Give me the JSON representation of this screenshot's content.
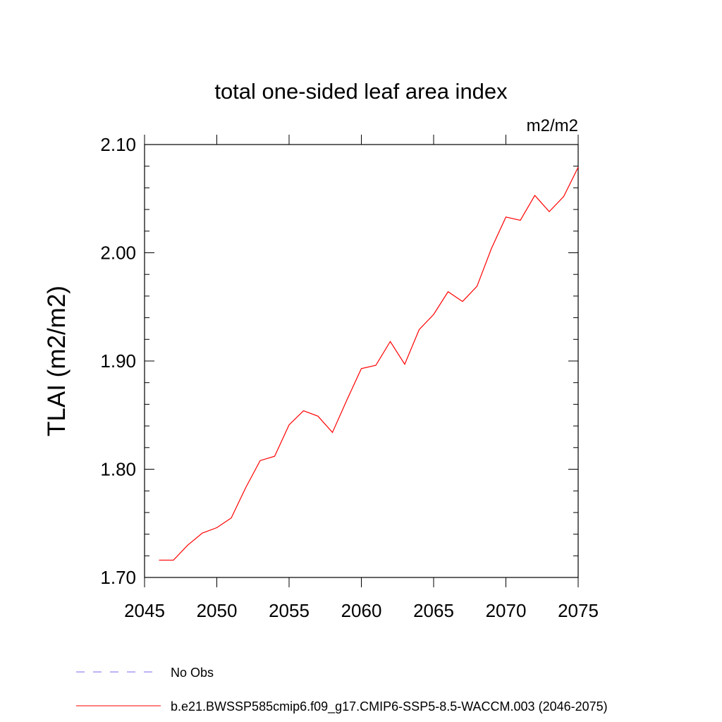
{
  "chart_data": {
    "type": "line",
    "title": "total one-sided leaf area index",
    "units": "m2/m2",
    "ylabel": "TLAI  (m2/m2)",
    "xlabel": "",
    "xlim": [
      2045,
      2075
    ],
    "ylim": [
      1.7,
      2.1
    ],
    "x_ticks": [
      "2045",
      "2050",
      "2055",
      "2060",
      "2065",
      "2070",
      "2075"
    ],
    "y_ticks": [
      "1.70",
      "1.80",
      "1.90",
      "2.00",
      "2.10"
    ],
    "grid": false,
    "legend_position": "bottom",
    "series": [
      {
        "name": "b.e21.BWSSP585cmip6.f09_g17.CMIP6-SSP5-8.5-WACCM.003 (2046-2075)",
        "color": "#ff0000",
        "style": "solid",
        "x": [
          2046,
          2047,
          2048,
          2049,
          2050,
          2051,
          2052,
          2053,
          2054,
          2055,
          2056,
          2057,
          2058,
          2059,
          2060,
          2061,
          2062,
          2063,
          2064,
          2065,
          2066,
          2067,
          2068,
          2069,
          2070,
          2071,
          2072,
          2073,
          2074,
          2075
        ],
        "values": [
          1.716,
          1.716,
          1.73,
          1.741,
          1.746,
          1.755,
          1.783,
          1.808,
          1.812,
          1.841,
          1.854,
          1.849,
          1.834,
          1.864,
          1.893,
          1.896,
          1.918,
          1.897,
          1.929,
          1.943,
          1.964,
          1.955,
          1.969,
          2.004,
          2.033,
          2.03,
          2.053,
          2.038,
          2.052,
          2.079
        ]
      },
      {
        "name": "No Obs",
        "color": "#7b68ee",
        "style": "dashed",
        "x": [],
        "values": []
      }
    ]
  }
}
